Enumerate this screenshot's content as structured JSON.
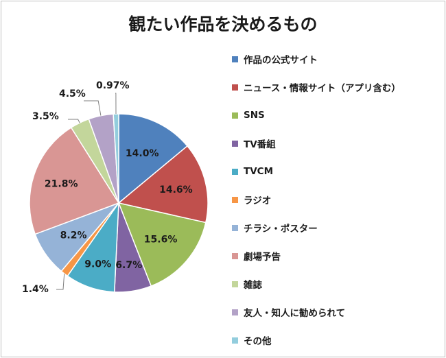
{
  "chart_data": {
    "type": "pie",
    "title": "観たい作品を決めるもの",
    "slices": [
      {
        "label": "作品の公式サイト",
        "value": 14.0,
        "display": "14.0%",
        "color": "#4f81bd"
      },
      {
        "label": "ニュース・情報サイト（アプリ含む）",
        "value": 14.6,
        "display": "14.6%",
        "color": "#c0504d"
      },
      {
        "label": "SNS",
        "value": 15.6,
        "display": "15.6%",
        "color": "#9bbb59"
      },
      {
        "label": "TV番組",
        "value": 6.7,
        "display": "6.7%",
        "color": "#8064a2"
      },
      {
        "label": "TVCM",
        "value": 9.0,
        "display": "9.0%",
        "color": "#4bacc6"
      },
      {
        "label": "ラジオ",
        "value": 1.4,
        "display": "1.4%",
        "color": "#f79646"
      },
      {
        "label": "チラシ・ポスター",
        "value": 8.2,
        "display": "8.2%",
        "color": "#95b3d7"
      },
      {
        "label": "劇場予告",
        "value": 21.8,
        "display": "21.8%",
        "color": "#d99694"
      },
      {
        "label": "雑誌",
        "value": 3.5,
        "display": "3.5%",
        "color": "#c3d69b"
      },
      {
        "label": "友人・知人に勧められて",
        "value": 4.5,
        "display": "4.5%",
        "color": "#b3a2c7"
      },
      {
        "label": "その他",
        "value": 0.97,
        "display": "0.97%",
        "color": "#93cddd"
      }
    ],
    "legend_position": "right"
  }
}
